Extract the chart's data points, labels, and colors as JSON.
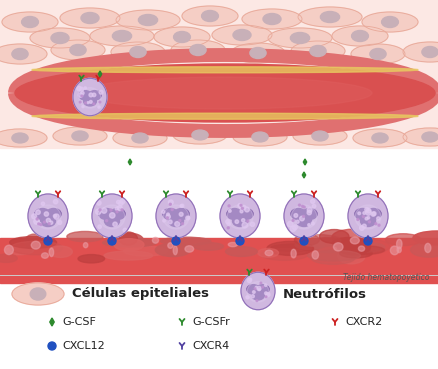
{
  "bg_color": "#ffffff",
  "tissue_color": "#f2c8c0",
  "tissue_border": "#e8a898",
  "cell_body_color": "#f5cec5",
  "cell_nucleus_color": "#c8b0b8",
  "vessel_red": "#d95050",
  "vessel_outer": "#e07070",
  "vessel_stripe": "#e8c870",
  "neutrophil_outer": "#b898cc",
  "neutrophil_inner": "#d0b8e0",
  "neutrophil_nucleus": "#8060a8",
  "neutrophil_border": "#9070b8",
  "neutrophil_granule": "#e8d8f0",
  "hema_color": "#cc5050",
  "hema_cell": "#d46060",
  "gcsfr_color": "#2d8a2d",
  "cxcr4_color": "#5040a0",
  "cxcr2_color": "#cc2020",
  "cxcl12_color": "#2050c0",
  "gcsf_color": "#2d8a2d",
  "text_color": "#222222",
  "label_hema": "Tejido hematopoyetico",
  "label_epithelial": "Células epiteliales",
  "label_neutrophil": "Neutrófilos"
}
